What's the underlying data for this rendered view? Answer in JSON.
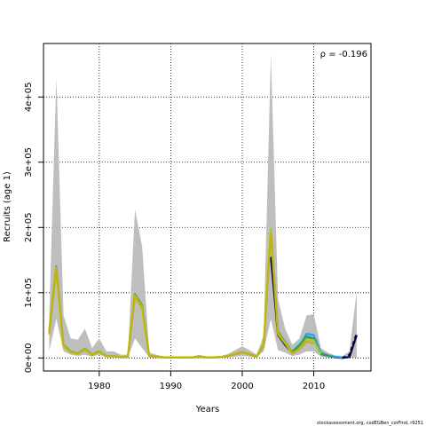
{
  "chart_data": {
    "type": "line",
    "title": "",
    "xlabel": "Years",
    "ylabel": "Recruits (age 1)",
    "xlim": [
      1972.2,
      2018
    ],
    "ylim": [
      -20000,
      482000
    ],
    "xticks": [
      1980,
      1990,
      2000,
      2010
    ],
    "yticks": [
      0,
      100000,
      200000,
      300000,
      400000
    ],
    "ytick_labels": [
      "0e+00",
      "1e+05",
      "2e+05",
      "3e+05",
      "4e+05"
    ],
    "grid": true,
    "annotation": "ρ = -0.196",
    "footer": "stockassessment.org, codEGBen_corFind, r9251",
    "band": {
      "color": "#bebebe",
      "x": [
        1973,
        1974,
        1975,
        1976,
        1977,
        1978,
        1979,
        1980,
        1981,
        1982,
        1983,
        1984,
        1985,
        1986,
        1987,
        1988,
        1989,
        1990,
        1991,
        1992,
        1993,
        1994,
        1995,
        1996,
        1997,
        1998,
        1999,
        2000,
        2001,
        2002,
        2003,
        2004,
        2005,
        2006,
        2007,
        2008,
        2009,
        2010,
        2011,
        2012,
        2013,
        2014,
        2015,
        2016
      ],
      "upper": [
        60000,
        430000,
        65000,
        30000,
        28000,
        45000,
        15000,
        30000,
        10000,
        10000,
        5000,
        5000,
        228000,
        170000,
        8000,
        5000,
        2000,
        2000,
        2000,
        2000,
        2000,
        5000,
        2000,
        2000,
        3000,
        6000,
        12000,
        18000,
        12000,
        5000,
        35000,
        465000,
        90000,
        45000,
        20000,
        30000,
        65000,
        67000,
        15000,
        8000,
        4000,
        3000,
        10000,
        102000
      ],
      "lower": [
        10000,
        60000,
        10000,
        5000,
        3000,
        5000,
        2000,
        5000,
        1000,
        1000,
        500,
        500,
        30000,
        15000,
        500,
        500,
        500,
        500,
        500,
        500,
        500,
        500,
        500,
        500,
        500,
        1000,
        2000,
        3000,
        2000,
        1000,
        10000,
        60000,
        12000,
        8000,
        3000,
        5000,
        10000,
        10000,
        2000,
        1000,
        500,
        500,
        500,
        500
      ]
    },
    "series": [
      {
        "color": "#000080",
        "x": [
          2004,
          2005,
          2006,
          2007,
          2008,
          2009,
          2010,
          2011,
          2012,
          2013,
          2014,
          2015,
          2016
        ],
        "values": [
          155000,
          35000,
          20000,
          8000,
          15000,
          30000,
          28000,
          6000,
          3000,
          1000,
          0,
          1500,
          35000
        ]
      },
      {
        "color": "#2a9df4",
        "x": [
          2008,
          2009,
          2010,
          2011,
          2012,
          2013,
          2014
        ],
        "values": [
          18000,
          37000,
          35000,
          8000,
          4000,
          1500,
          500
        ]
      },
      {
        "color": "#20a090",
        "x": [
          2007,
          2008,
          2009,
          2010,
          2011,
          2012,
          2013
        ],
        "values": [
          10000,
          20000,
          33000,
          30000,
          7000,
          3000,
          1000
        ]
      },
      {
        "color": "#3c9d3c",
        "x": [
          1973,
          1974,
          1975,
          1976,
          1977,
          1978,
          1979,
          1980,
          1981,
          1982,
          1983,
          1984,
          1985,
          1986,
          1987,
          1988,
          1989,
          1990,
          1991,
          1992,
          1993,
          1994,
          1995,
          1996,
          1997,
          1998,
          1999,
          2000,
          2001,
          2002,
          2003,
          2004,
          2005,
          2006,
          2007,
          2008,
          2009,
          2010,
          2011,
          2012
        ],
        "values": [
          40000,
          140000,
          20000,
          10000,
          7000,
          14000,
          5000,
          10000,
          3000,
          3000,
          1000,
          2000,
          98000,
          80000,
          3000,
          2000,
          1000,
          1000,
          1000,
          1000,
          1000,
          2000,
          1000,
          1000,
          1500,
          3000,
          6000,
          9000,
          6000,
          2000,
          20000,
          195000,
          40000,
          25000,
          8000,
          15000,
          30000,
          28000,
          6000,
          3000
        ]
      },
      {
        "color": "#9acd32",
        "x": [
          1973,
          1974,
          1975,
          1976,
          1977,
          1978,
          1979,
          1980,
          1981,
          1982,
          1983,
          1984,
          1985,
          1986,
          1987,
          1988,
          1989,
          1990,
          1991,
          1992,
          1993,
          1994,
          1995,
          1996,
          1997,
          1998,
          1999,
          2000,
          2001,
          2002,
          2003,
          2004,
          2005,
          2006,
          2007,
          2008,
          2009,
          2010,
          2011
        ],
        "values": [
          38000,
          138000,
          19000,
          9500,
          6500,
          13500,
          4500,
          9500,
          2800,
          2800,
          900,
          1800,
          96000,
          78000,
          2800,
          1800,
          900,
          900,
          900,
          900,
          900,
          1800,
          900,
          900,
          1400,
          2800,
          5800,
          8800,
          5800,
          1800,
          19000,
          198000,
          38000,
          24000,
          7500,
          14000,
          29000,
          27000,
          5800
        ]
      },
      {
        "color": "#c8b400",
        "x": [
          1973,
          1974,
          1975,
          1976,
          1977,
          1978,
          1979,
          1980,
          1981,
          1982,
          1983,
          1984,
          1985,
          1986,
          1987,
          1988,
          1989,
          1990,
          1991,
          1992,
          1993,
          1994,
          1995,
          1996,
          1997,
          1998,
          1999,
          2000,
          2001,
          2002,
          2003,
          2004,
          2005,
          2006,
          2007,
          2008,
          2009,
          2010
        ],
        "values": [
          36000,
          135000,
          18000,
          9000,
          6000,
          13000,
          4000,
          9000,
          2500,
          2500,
          800,
          1500,
          94000,
          76000,
          2500,
          1500,
          800,
          800,
          800,
          800,
          800,
          1500,
          800,
          800,
          1200,
          2500,
          5500,
          8500,
          5500,
          1500,
          18000,
          190000,
          36000,
          22000,
          7000,
          13000,
          25000,
          22000
        ]
      }
    ],
    "dashed_series": {
      "color": "#000000",
      "x": [
        2014,
        2015,
        2016
      ],
      "values": [
        0,
        5000,
        38000
      ]
    }
  }
}
